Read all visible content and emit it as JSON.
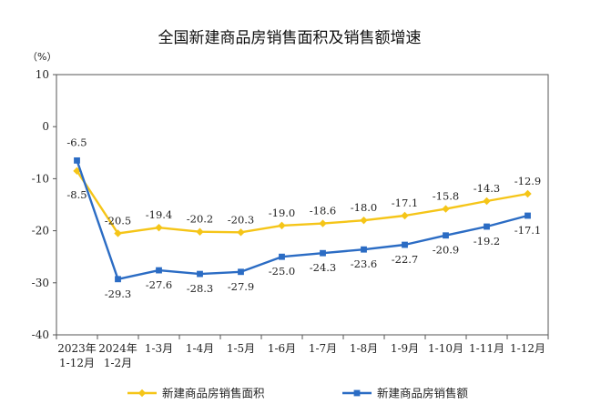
{
  "chart_data": {
    "type": "line",
    "title": "全国新建商品房销售面积及销售额增速",
    "ylabel": "（%）",
    "ylim": [
      -40,
      10
    ],
    "yticks": [
      10,
      0,
      -10,
      -20,
      -30,
      -40
    ],
    "grid": false,
    "legend_position": "bottom",
    "categories": [
      [
        "2023年",
        "1-12月"
      ],
      [
        "2024年",
        "1-2月"
      ],
      [
        "1-3月"
      ],
      [
        "1-4月"
      ],
      [
        "1-5月"
      ],
      [
        "1-6月"
      ],
      [
        "1-7月"
      ],
      [
        "1-8月"
      ],
      [
        "1-9月"
      ],
      [
        "1-10月"
      ],
      [
        "1-11月"
      ],
      [
        "1-12月"
      ]
    ],
    "series": [
      {
        "name": "新建商品房销售面积",
        "color": "#F5C518",
        "marker": "diamond",
        "values": [
          -8.5,
          -20.5,
          -19.4,
          -20.2,
          -20.3,
          -19.0,
          -18.6,
          -18.0,
          -17.1,
          -15.8,
          -14.3,
          -12.9
        ],
        "labels": [
          "-8.5",
          "-20.5",
          "-19.4",
          "-20.2",
          "-20.3",
          "-19.0",
          "-18.6",
          "-18.0",
          "-17.1",
          "-15.8",
          "-14.3",
          "-12.9"
        ]
      },
      {
        "name": "新建商品房销售额",
        "color": "#2B6CC4",
        "marker": "square",
        "values": [
          -6.5,
          -29.3,
          -27.6,
          -28.3,
          -27.9,
          -25.0,
          -24.3,
          -23.6,
          -22.7,
          -20.9,
          -19.2,
          -17.1
        ],
        "labels": [
          "-6.5",
          "-29.3",
          "-27.6",
          "-28.3",
          "-27.9",
          "-25.0",
          "-24.3",
          "-23.6",
          "-22.7",
          "-20.9",
          "-19.2",
          "-17.1"
        ]
      }
    ]
  }
}
